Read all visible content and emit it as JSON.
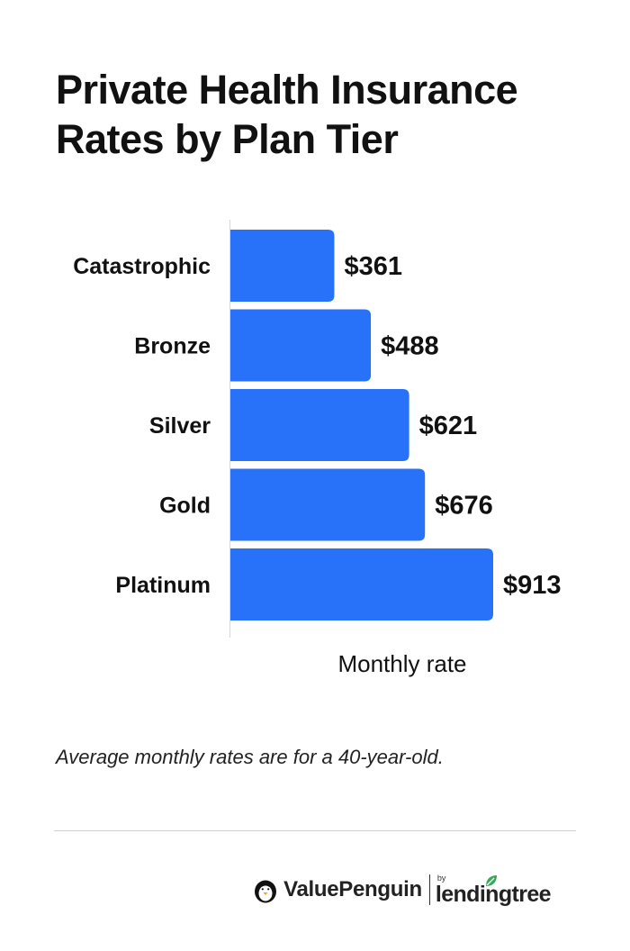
{
  "title": "Private Health Insurance Rates by Plan Tier",
  "footnote": "Average monthly rates are for a 40-year-old.",
  "colors": {
    "bar": "#2872fa",
    "axis": "#d8d8d8",
    "leaf": "#3aa757"
  },
  "brand": {
    "valuepenguin": "ValuePenguin",
    "by": "by",
    "lendingtree": "lendingtree",
    "icons": [
      "penguin-icon",
      "leaf-icon"
    ]
  },
  "chart_data": {
    "type": "bar",
    "orientation": "horizontal",
    "categories": [
      "Catastrophic",
      "Bronze",
      "Silver",
      "Gold",
      "Platinum"
    ],
    "values": [
      361,
      488,
      621,
      676,
      913
    ],
    "value_labels": [
      "$361",
      "$488",
      "$621",
      "$676",
      "$913"
    ],
    "title": "Private Health Insurance Rates by Plan Tier",
    "xlabel": "Monthly rate",
    "ylabel": "",
    "xlim": [
      0,
      913
    ],
    "grid": false,
    "legend": "none"
  }
}
